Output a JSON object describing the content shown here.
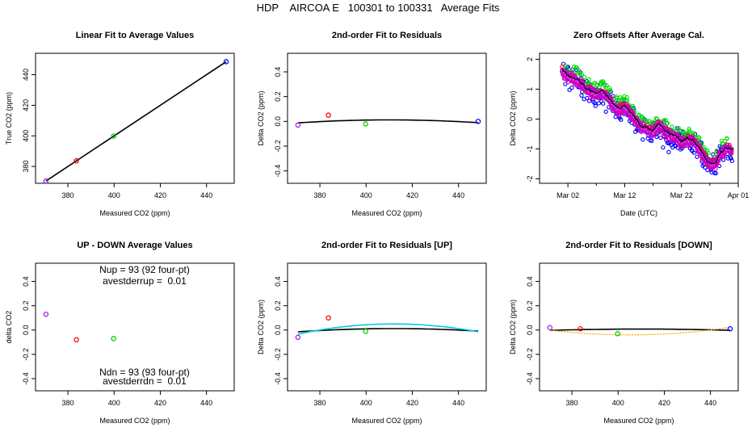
{
  "page_title": "HDP    AIRCOA E   100301 to 100331   Average Fits",
  "colors": {
    "tank1": "#a020f0",
    "tank2": "#ff0000",
    "tank3": "#00cc00",
    "tank4": "#0000ff",
    "fit": "#000000",
    "fit_up": "#00ccdd",
    "fit_down": "#ffa500",
    "zero_series": [
      "#0000ff",
      "#00dd00",
      "#ff0000",
      "#cc00cc",
      "#000000"
    ]
  },
  "chart_data": [
    {
      "type": "scatter",
      "title": "Linear Fit to Average Values",
      "xlabel": "Measured CO2 (ppm)",
      "ylabel": "True CO2 (ppm)",
      "xlim": [
        366,
        452
      ],
      "ylim": [
        369,
        454
      ],
      "xticks": [
        380,
        400,
        420,
        440
      ],
      "yticks": [
        380,
        400,
        420,
        440
      ],
      "series": [
        {
          "x": [
            370.5,
            383.7,
            399.8,
            448.5
          ],
          "y": [
            370.5,
            383.7,
            399.8,
            448.5
          ],
          "colors": [
            "#a020f0",
            "#ff0000",
            "#00cc00",
            "#0000ff"
          ]
        }
      ],
      "fit_line": {
        "x": [
          370.5,
          448.5
        ],
        "y": [
          370.5,
          448.5
        ]
      }
    },
    {
      "type": "scatter",
      "title": "2nd-order Fit to Residuals",
      "xlabel": "Measured CO2 (ppm)",
      "ylabel": "Delta CO2 (ppm)",
      "xlim": [
        366,
        452
      ],
      "ylim": [
        -0.5,
        0.55
      ],
      "xticks": [
        380,
        400,
        420,
        440
      ],
      "yticks": [
        -0.4,
        -0.2,
        0.0,
        0.2,
        0.4
      ],
      "series": [
        {
          "x": [
            370.5,
            383.7,
            399.8,
            448.5
          ],
          "y": [
            -0.03,
            0.05,
            -0.02,
            0.0
          ],
          "colors": [
            "#a020f0",
            "#ff0000",
            "#00cc00",
            "#0000ff"
          ]
        }
      ],
      "fit_curve": {
        "x": [
          370.5,
          448.5
        ],
        "vertex_x": 410,
        "vertex_y": 0.012,
        "end_y": [
          -0.015,
          -0.008
        ]
      }
    },
    {
      "type": "line",
      "title": "Zero Offsets After Average Cal.",
      "xlabel": "Date (UTC)",
      "ylabel": "Delta CO2 (ppm)",
      "xlim": [
        -4,
        31
      ],
      "ylim": [
        -2.15,
        2.2
      ],
      "xticks": [
        "Mar 02",
        "Mar 12",
        "Mar 22",
        "Apr 01"
      ],
      "xtick_values": [
        1,
        11,
        21,
        31
      ],
      "yticks": [
        -2,
        -1,
        0,
        1,
        2
      ],
      "trend": [
        [
          0,
          1.65
        ],
        [
          1,
          1.45
        ],
        [
          2,
          1.4
        ],
        [
          3,
          1.3
        ],
        [
          4,
          1.05
        ],
        [
          5,
          0.95
        ],
        [
          6,
          0.85
        ],
        [
          7,
          0.95
        ],
        [
          8,
          0.75
        ],
        [
          9,
          0.5
        ],
        [
          10,
          0.35
        ],
        [
          11,
          0.45
        ],
        [
          12,
          0.25
        ],
        [
          13,
          0.0
        ],
        [
          14,
          -0.25
        ],
        [
          15,
          -0.3
        ],
        [
          16,
          -0.4
        ],
        [
          17,
          -0.15
        ],
        [
          18,
          -0.35
        ],
        [
          19,
          -0.5
        ],
        [
          20,
          -0.55
        ],
        [
          21,
          -0.75
        ],
        [
          22,
          -0.65
        ],
        [
          23,
          -0.7
        ],
        [
          24,
          -0.95
        ],
        [
          25,
          -1.25
        ],
        [
          26,
          -1.5
        ],
        [
          27,
          -1.45
        ],
        [
          28,
          -1.1
        ],
        [
          29,
          -0.95
        ],
        [
          30,
          -1.0
        ]
      ]
    },
    {
      "type": "scatter",
      "title": "UP - DOWN Average Values",
      "xlabel": "Measured CO2 (ppm)",
      "ylabel": "delta CO2",
      "xlim": [
        366,
        452
      ],
      "ylim": [
        -0.5,
        0.55
      ],
      "xticks": [
        380,
        400,
        420,
        440
      ],
      "yticks": [
        -0.4,
        -0.2,
        0.0,
        0.2,
        0.4
      ],
      "series": [
        {
          "x": [
            370.5,
            383.7,
            399.8
          ],
          "y": [
            0.13,
            -0.08,
            -0.07
          ],
          "colors": [
            "#a020f0",
            "#ff0000",
            "#00cc00"
          ]
        }
      ],
      "annotations": [
        "Nup = 93 (92 four-pt)",
        "avestderrup =  0.01",
        "Ndn = 93 (93 four-pt)",
        "avestderrdn =  0.01"
      ]
    },
    {
      "type": "scatter",
      "title": "2nd-order Fit to Residuals [UP]",
      "xlabel": "Measured CO2 (ppm)",
      "ylabel": "Delta CO2 (ppm)",
      "xlim": [
        366,
        452
      ],
      "ylim": [
        -0.5,
        0.55
      ],
      "xticks": [
        380,
        400,
        420,
        440
      ],
      "yticks": [
        -0.4,
        -0.2,
        0.0,
        0.2,
        0.4
      ],
      "series": [
        {
          "x": [
            370.5,
            383.7,
            399.8
          ],
          "y": [
            -0.06,
            0.1,
            -0.01
          ],
          "colors": [
            "#a020f0",
            "#ff0000",
            "#00cc00"
          ]
        }
      ],
      "fit_curve": {
        "x": [
          370.5,
          448.5
        ],
        "vertex_x": 412,
        "vertex_y": 0.012,
        "end_y": [
          -0.02,
          -0.005
        ]
      },
      "fit_curve_up": {
        "x": [
          370.5,
          448.5
        ],
        "vertex_x": 412,
        "vertex_y": 0.05,
        "end_y": [
          -0.04,
          -0.01
        ]
      }
    },
    {
      "type": "scatter",
      "title": "2nd-order Fit to Residuals [DOWN]",
      "xlabel": "Measured CO2 (ppm)",
      "ylabel": "Delta CO2 (ppm)",
      "xlim": [
        366,
        452
      ],
      "ylim": [
        -0.5,
        0.55
      ],
      "xticks": [
        380,
        400,
        420,
        440
      ],
      "yticks": [
        -0.4,
        -0.2,
        0.0,
        0.2,
        0.4
      ],
      "series": [
        {
          "x": [
            370.5,
            383.7,
            399.8,
            448.5
          ],
          "y": [
            0.02,
            0.01,
            -0.03,
            0.01
          ],
          "colors": [
            "#a020f0",
            "#ff0000",
            "#00cc00",
            "#0000ff"
          ]
        }
      ],
      "fit_curve": {
        "x": [
          370.5,
          448.5
        ],
        "vertex_x": 410,
        "vertex_y": 0.008,
        "end_y": [
          -0.005,
          0.0
        ]
      },
      "fit_curve_down": {
        "x": [
          370.5,
          448.5
        ],
        "vertex_x": 405,
        "vertex_y": -0.04,
        "end_y": [
          0.01,
          0.005
        ]
      }
    }
  ]
}
